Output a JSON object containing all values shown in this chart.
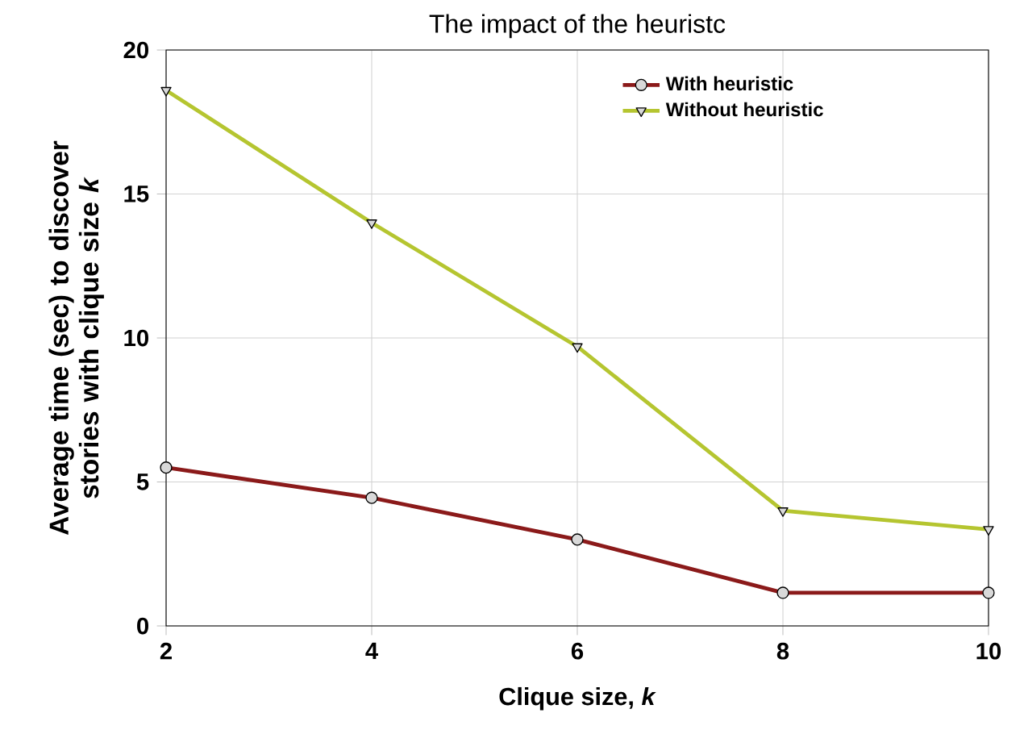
{
  "chart_data": {
    "type": "line",
    "title": "The impact of the heuristc",
    "xlabel": "Clique size, *k*",
    "ylabel": "Average time (sec) to discover stories with clique size *k*",
    "x": [
      2,
      4,
      6,
      8,
      10
    ],
    "series": [
      {
        "name": "With heuristic",
        "color": "#8b1a1a",
        "marker": "circle",
        "values": [
          5.5,
          4.45,
          3.0,
          1.15,
          1.15
        ]
      },
      {
        "name": "Without heuristic",
        "color": "#b5c530",
        "marker": "triangle",
        "values": [
          18.6,
          14.0,
          9.7,
          4.0,
          3.35
        ]
      }
    ],
    "xlim": [
      2,
      10
    ],
    "ylim": [
      0,
      20
    ],
    "xticks": [
      2,
      4,
      6,
      8,
      10
    ],
    "yticks": [
      0,
      5,
      10,
      15,
      20
    ],
    "grid": true,
    "legend": "top right",
    "line_style": "solid"
  }
}
